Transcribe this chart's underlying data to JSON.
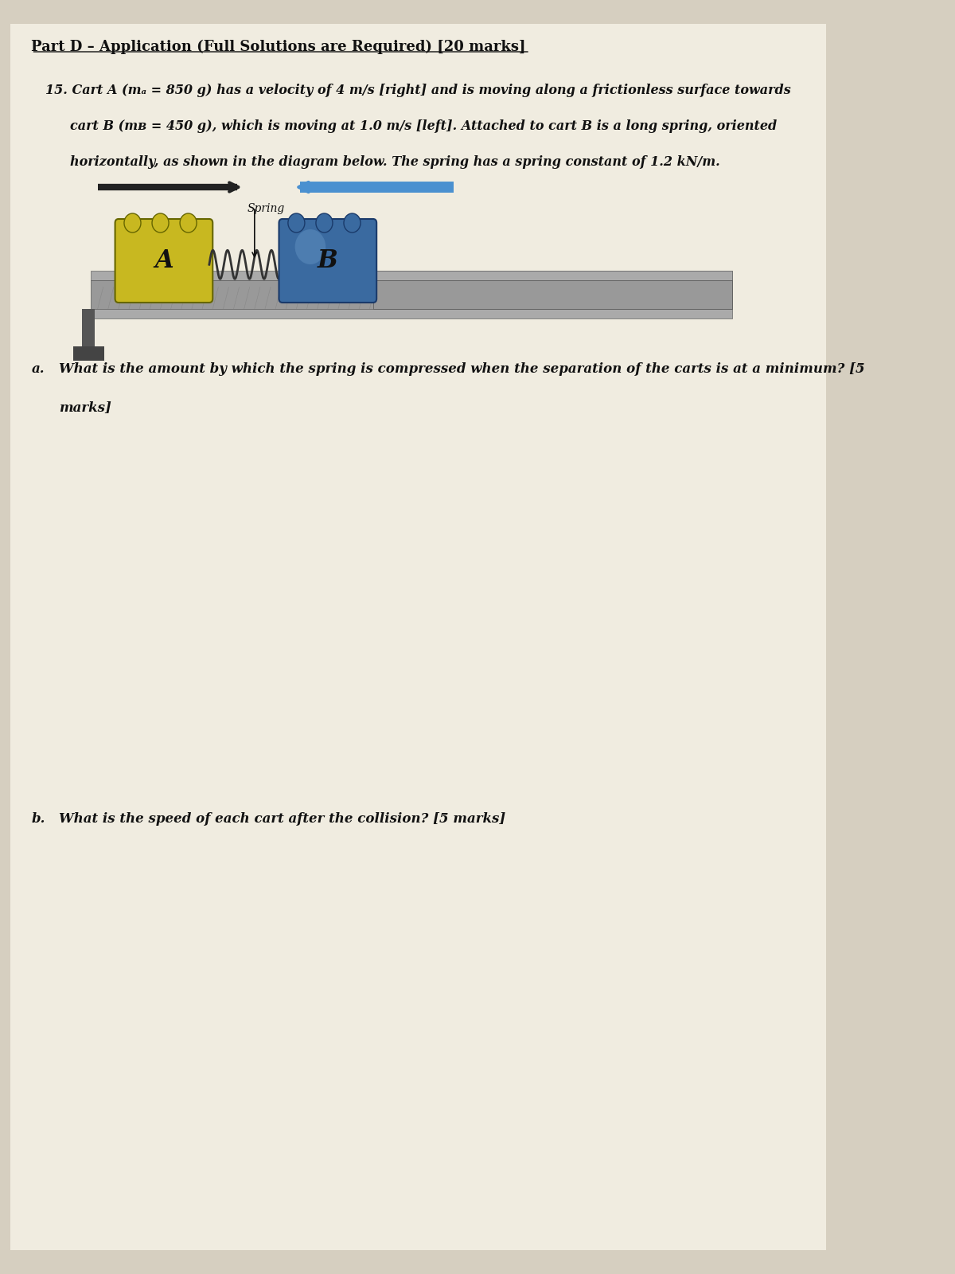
{
  "bg_color": "#d6cfc0",
  "paper_color": "#f0ece0",
  "title": "Part D – Application (Full Solutions are Required) [20 marks]",
  "problem_number": "15.",
  "problem_text_line1": "Cart A (mₐ = 850 g) has a velocity of 4 m/s [right] and is moving along a frictionless surface towards",
  "problem_text_line2": "cart B (mʙ = 450 g), which is moving at 1.0 m/s [left]. Attached to cart B is a long spring, oriented",
  "problem_text_line3": "horizontally, as shown in the diagram below. The spring has a spring constant of 1.2 kN/m.",
  "arrow_label": "Spring",
  "cart_a_label": "A",
  "cart_b_label": "B",
  "question_a": "a. What is the amount by which the spring is compressed when the separation of the carts is at a minimum? [5\n  marks]",
  "question_b": "b. What is the speed of each cart after the collision? [5 marks]",
  "cart_a_color": "#c8b820",
  "cart_b_color": "#3a6aa0",
  "track_color": "#888888",
  "arrow_right_color": "#222222",
  "arrow_left_color": "#4a90d0"
}
